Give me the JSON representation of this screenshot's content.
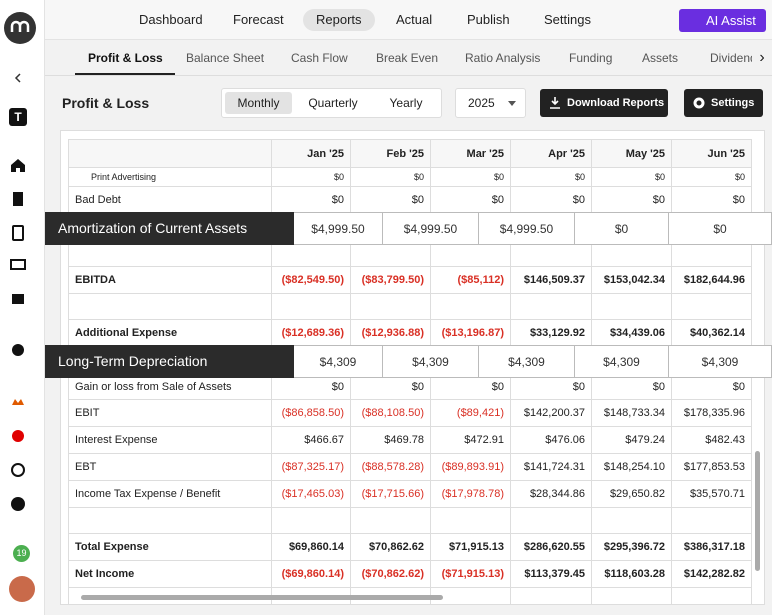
{
  "nav": {
    "items": [
      "Dashboard",
      "Forecast",
      "Reports",
      "Actual",
      "Publish",
      "Settings"
    ],
    "ai_button": "AI Assist"
  },
  "tabs": [
    "Profit & Loss",
    "Balance Sheet",
    "Cash Flow",
    "Break Even",
    "Ratio Analysis",
    "Funding",
    "Assets",
    "Dividends"
  ],
  "toolbar": {
    "title": "Profit & Loss",
    "periods": [
      "Monthly",
      "Quarterly",
      "Yearly"
    ],
    "year": "2025",
    "download": "Download Reports",
    "settings": "Settings"
  },
  "sidebar": {
    "workspace": "T",
    "badge": "19"
  },
  "table": {
    "columns": [
      "Jan '25",
      "Feb '25",
      "Mar '25",
      "Apr '25",
      "May '25",
      "Jun '25"
    ],
    "rows": [
      {
        "label": "Print Advertising",
        "values": [
          "$0",
          "$0",
          "$0",
          "$0",
          "$0",
          "$0"
        ]
      },
      {
        "label": "Bad Debt",
        "values": [
          "$0",
          "$0",
          "$0",
          "$0",
          "$0",
          "$0"
        ]
      },
      {
        "label": "EBITDA",
        "values": [
          "($82,549.50)",
          "($83,799.50)",
          "($85,112)",
          "$146,509.37",
          "$153,042.34",
          "$182,644.96"
        ]
      },
      {
        "label": "Additional Expense",
        "values": [
          "($12,689.36)",
          "($12,936.88)",
          "($13,196.87)",
          "$33,129.92",
          "$34,439.06",
          "$40,362.14"
        ]
      },
      {
        "label": "Gain or loss from Sale of Assets",
        "values": [
          "$0",
          "$0",
          "$0",
          "$0",
          "$0",
          "$0"
        ]
      },
      {
        "label": "EBIT",
        "values": [
          "($86,858.50)",
          "($88,108.50)",
          "($89,421)",
          "$142,200.37",
          "$148,733.34",
          "$178,335.96"
        ]
      },
      {
        "label": "Interest Expense",
        "values": [
          "$466.67",
          "$469.78",
          "$472.91",
          "$476.06",
          "$479.24",
          "$482.43"
        ]
      },
      {
        "label": "EBT",
        "values": [
          "($87,325.17)",
          "($88,578.28)",
          "($89,893.91)",
          "$141,724.31",
          "$148,254.10",
          "$177,853.53"
        ]
      },
      {
        "label": "Income Tax Expense / Benefit",
        "values": [
          "($17,465.03)",
          "($17,715.66)",
          "($17,978.78)",
          "$28,344.86",
          "$29,650.82",
          "$35,570.71"
        ]
      },
      {
        "label": "Total Expense",
        "values": [
          "$69,860.14",
          "$70,862.62",
          "$71,915.13",
          "$286,620.55",
          "$295,396.72",
          "$386,317.18"
        ]
      },
      {
        "label": "Net Income",
        "values": [
          "($69,860.14)",
          "($70,862.62)",
          "($71,915.13)",
          "$113,379.45",
          "$118,603.28",
          "$142,282.82"
        ]
      }
    ]
  },
  "overlays": [
    {
      "label": "Amortization of Current Assets",
      "values": [
        "$4,999.50",
        "$4,999.50",
        "$4,999.50",
        "$0",
        "$0"
      ]
    },
    {
      "label": "Long-Term Depreciation",
      "values": [
        "$4,309",
        "$4,309",
        "$4,309",
        "$4,309",
        "$4,309"
      ]
    }
  ]
}
